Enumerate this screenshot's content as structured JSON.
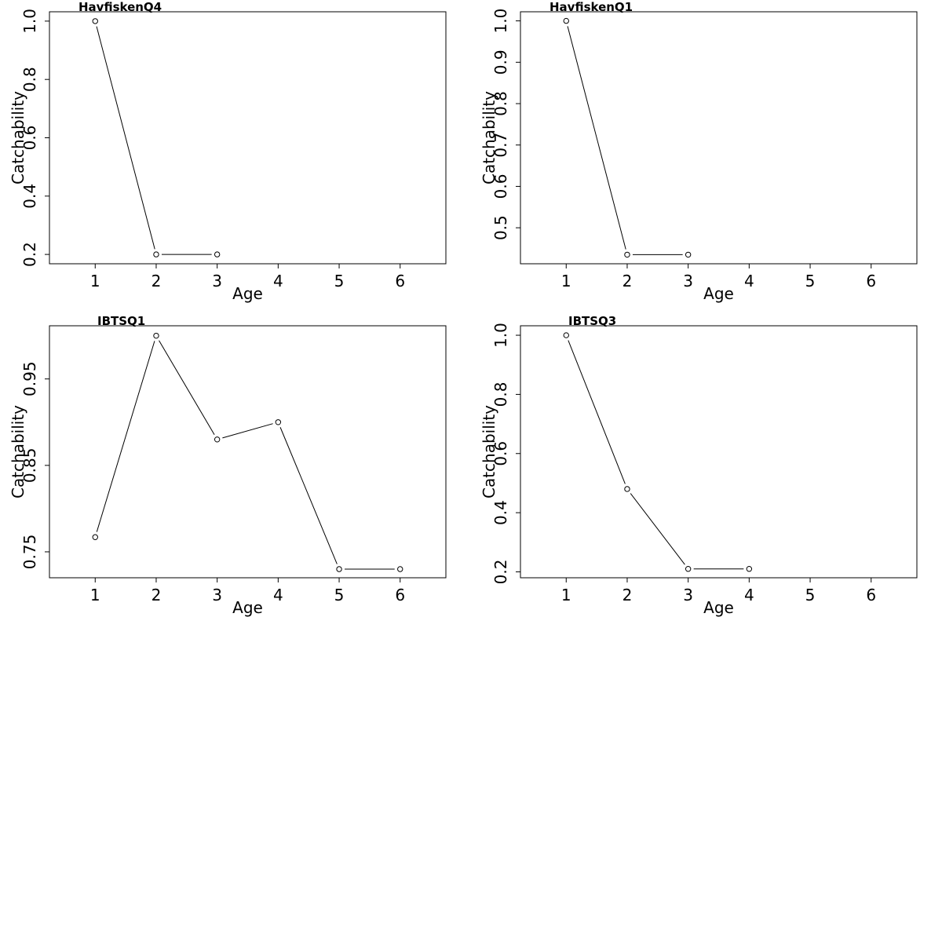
{
  "figure": {
    "background": "#ffffff",
    "line_color": "#000000",
    "marker": "open-circle"
  },
  "chart_data": [
    {
      "type": "line",
      "title": "HavfiskenQ4",
      "xlabel": "Age",
      "ylabel": "Catchability",
      "x_ticks": [
        "1",
        "2",
        "3",
        "4",
        "5",
        "6"
      ],
      "y_ticks": [
        "0.2",
        "0.4",
        "0.6",
        "0.8",
        "1.0"
      ],
      "xlim": [
        0.25,
        6.75
      ],
      "ylim": [
        0.168,
        1.032
      ],
      "x": [
        1,
        2,
        3
      ],
      "y": [
        1.0,
        0.2,
        0.2
      ]
    },
    {
      "type": "line",
      "title": "HavfiskenQ1",
      "xlabel": "Age",
      "ylabel": "Catchability",
      "x_ticks": [
        "1",
        "2",
        "3",
        "4",
        "5",
        "6"
      ],
      "y_ticks": [
        "0.5",
        "0.6",
        "0.7",
        "0.8",
        "0.9",
        "1.0"
      ],
      "xlim": [
        0.25,
        6.75
      ],
      "ylim": [
        0.413,
        1.022
      ],
      "x": [
        1,
        2,
        3
      ],
      "y": [
        1.0,
        0.435,
        0.435
      ]
    },
    {
      "type": "line",
      "title": "IBTSQ1",
      "xlabel": "Age",
      "ylabel": "Catchability",
      "x_ticks": [
        "1",
        "2",
        "3",
        "4",
        "5",
        "6"
      ],
      "y_ticks": [
        "0.75",
        "0.85",
        "0.95"
      ],
      "xlim": [
        0.25,
        6.75
      ],
      "ylim": [
        0.72,
        1.0115
      ],
      "x": [
        1,
        2,
        3,
        4,
        5,
        6
      ],
      "y": [
        0.767,
        1.0,
        0.88,
        0.9,
        0.73,
        0.73
      ]
    },
    {
      "type": "line",
      "title": "IBTSQ3",
      "xlabel": "Age",
      "ylabel": "Catchability",
      "x_ticks": [
        "1",
        "2",
        "3",
        "4",
        "5",
        "6"
      ],
      "y_ticks": [
        "0.2",
        "0.4",
        "0.6",
        "0.8",
        "1.0"
      ],
      "xlim": [
        0.25,
        6.75
      ],
      "ylim": [
        0.18,
        1.032
      ],
      "x": [
        1,
        2,
        3,
        4
      ],
      "y": [
        1.0,
        0.48,
        0.21,
        0.21
      ]
    }
  ]
}
